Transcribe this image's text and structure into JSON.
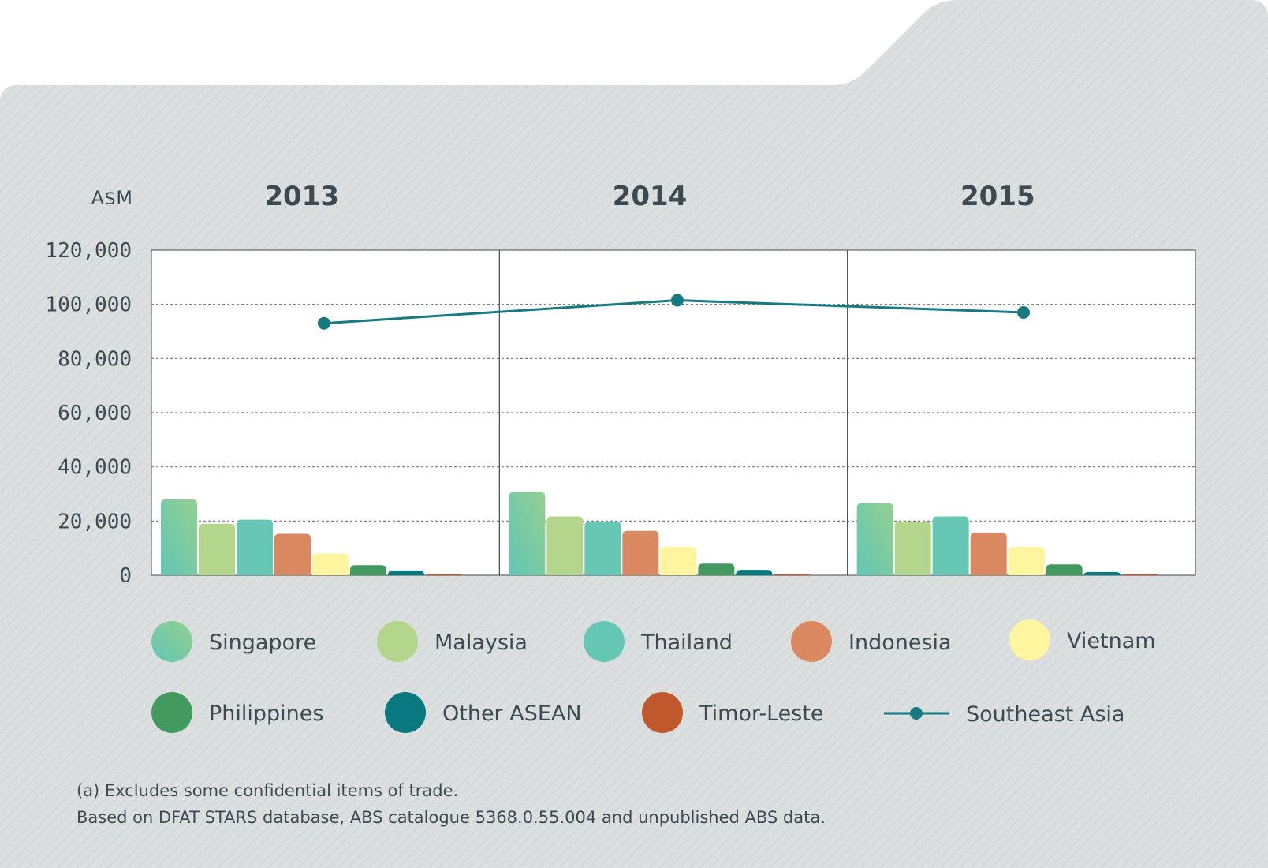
{
  "chart_data": {
    "type": "bar",
    "ylabel": "A$M",
    "ylim": [
      0,
      120000
    ],
    "yticks": [
      "0",
      "20,000",
      "40,000",
      "60,000",
      "80,000",
      "100,000",
      "120,000"
    ],
    "ytick_values": [
      0,
      20000,
      40000,
      60000,
      80000,
      100000,
      120000
    ],
    "categories": [
      "2013",
      "2014",
      "2015"
    ],
    "series": [
      {
        "name": "Singapore",
        "color": "#7ecc9e",
        "values": [
          28000,
          30700,
          26600
        ]
      },
      {
        "name": "Malaysia",
        "color": "#b3d68c",
        "values": [
          19000,
          21700,
          19800
        ]
      },
      {
        "name": "Thailand",
        "color": "#66c7b4",
        "values": [
          20500,
          19800,
          21700
        ]
      },
      {
        "name": "Indonesia",
        "color": "#d9885f",
        "values": [
          15300,
          16400,
          15700
        ]
      },
      {
        "name": "Vietnam",
        "color": "#fff59e",
        "values": [
          8000,
          10500,
          10500
        ]
      },
      {
        "name": "Philippines",
        "color": "#429a5f",
        "values": [
          3700,
          4300,
          4000
        ]
      },
      {
        "name": "Other ASEAN",
        "color": "#08797f",
        "values": [
          1800,
          2000,
          1200
        ]
      },
      {
        "name": "Timor-Leste",
        "color": "#c0582c",
        "values": [
          150,
          150,
          150
        ]
      }
    ],
    "line": {
      "name": "Southeast Asia",
      "color": "#157a82",
      "values": [
        93000,
        101500,
        97000
      ]
    },
    "grid": true,
    "legend_position": "bottom"
  },
  "footnotes": [
    "(a) Excludes some confidential items of trade.",
    "Based on DFAT STARS database, ABS catalogue 5368.0.55.004 and unpublished ABS data."
  ],
  "colors": {
    "panel": "#dcdfdf",
    "plot_bg": "#ffffff",
    "text": "#3d4a52"
  }
}
